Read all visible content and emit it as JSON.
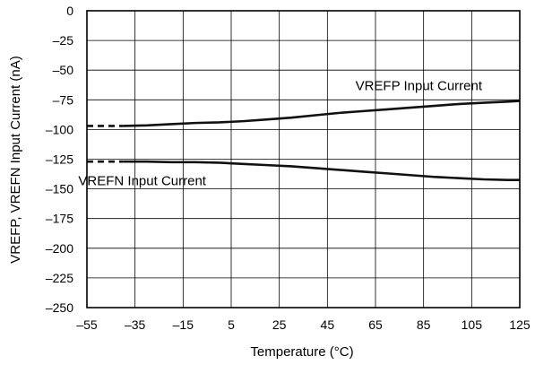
{
  "chart_data": {
    "type": "line",
    "title": "",
    "xlabel": "Temperature (°C)",
    "ylabel": "VREFP, VREFN Input Current (nA)",
    "xlim": [
      -55,
      125
    ],
    "ylim": [
      -250,
      0
    ],
    "x_ticks": [
      -55,
      -35,
      -15,
      5,
      25,
      45,
      65,
      85,
      105,
      125
    ],
    "x_tick_labels": [
      "–55",
      "–35",
      "–15",
      "5",
      "25",
      "45",
      "65",
      "85",
      "105",
      "125"
    ],
    "y_ticks": [
      0,
      -25,
      -50,
      -75,
      -100,
      -125,
      -150,
      -175,
      -200,
      -225,
      -250
    ],
    "y_tick_labels": [
      "0",
      "–25",
      "–50",
      "–75",
      "–100",
      "–125",
      "–150",
      "–175",
      "–200",
      "–225",
      "–250"
    ],
    "grid": true,
    "series": [
      {
        "name": "VREFP Input Current",
        "dashed_x": [
          -55,
          -40
        ],
        "dashed_y": [
          -97,
          -97
        ],
        "x": [
          -40,
          -30,
          -20,
          -10,
          0,
          10,
          20,
          30,
          40,
          50,
          60,
          70,
          80,
          90,
          100,
          110,
          120,
          125
        ],
        "y": [
          -97,
          -96.5,
          -95.5,
          -94.5,
          -94,
          -93,
          -91.5,
          -90,
          -88,
          -86,
          -84.5,
          -83,
          -81.5,
          -80,
          -78.5,
          -77.5,
          -76.5,
          -76
        ]
      },
      {
        "name": "VREFN Input Current",
        "dashed_x": [
          -55,
          -40
        ],
        "dashed_y": [
          -127,
          -127
        ],
        "x": [
          -40,
          -30,
          -20,
          -10,
          0,
          10,
          20,
          30,
          40,
          50,
          60,
          70,
          80,
          90,
          100,
          110,
          120,
          125
        ],
        "y": [
          -127,
          -127,
          -127.5,
          -127.5,
          -128,
          -129,
          -130,
          -131,
          -132.5,
          -134,
          -135.5,
          -137,
          -138.5,
          -140,
          -141,
          -142,
          -142.5,
          -142.5
        ]
      }
    ],
    "annotations": [
      {
        "text": "VREFP Input Current",
        "x": 83,
        "y": -67
      },
      {
        "text": "VREFN Input Current",
        "x": -32,
        "y": -147
      }
    ]
  }
}
